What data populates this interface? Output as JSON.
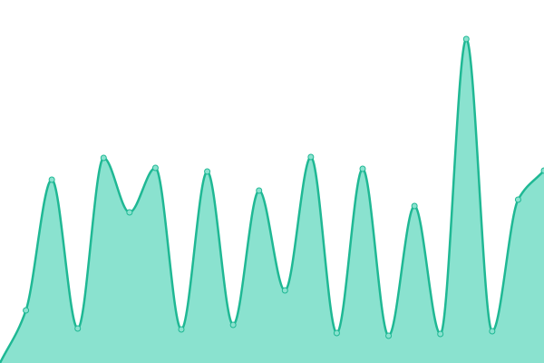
{
  "chart_data": {
    "type": "area",
    "x": [
      0,
      1,
      2,
      3,
      4,
      5,
      6,
      7,
      8,
      9,
      10,
      11,
      12,
      13,
      14,
      15,
      16,
      17,
      18,
      19,
      20,
      21
    ],
    "values": [
      0,
      58,
      202,
      38,
      226,
      166,
      215,
      37,
      211,
      42,
      190,
      80,
      227,
      33,
      214,
      30,
      173,
      32,
      357,
      35,
      180,
      212
    ],
    "ylim": [
      0,
      400
    ],
    "xlim": [
      0,
      21
    ],
    "grid": false,
    "curve": "smooth",
    "colors": {
      "line": "#1fb894",
      "fill": "#8ae2cf",
      "marker_fill": "#8ae2cf",
      "marker_stroke": "#1fb894",
      "background": "#ffffff"
    }
  }
}
